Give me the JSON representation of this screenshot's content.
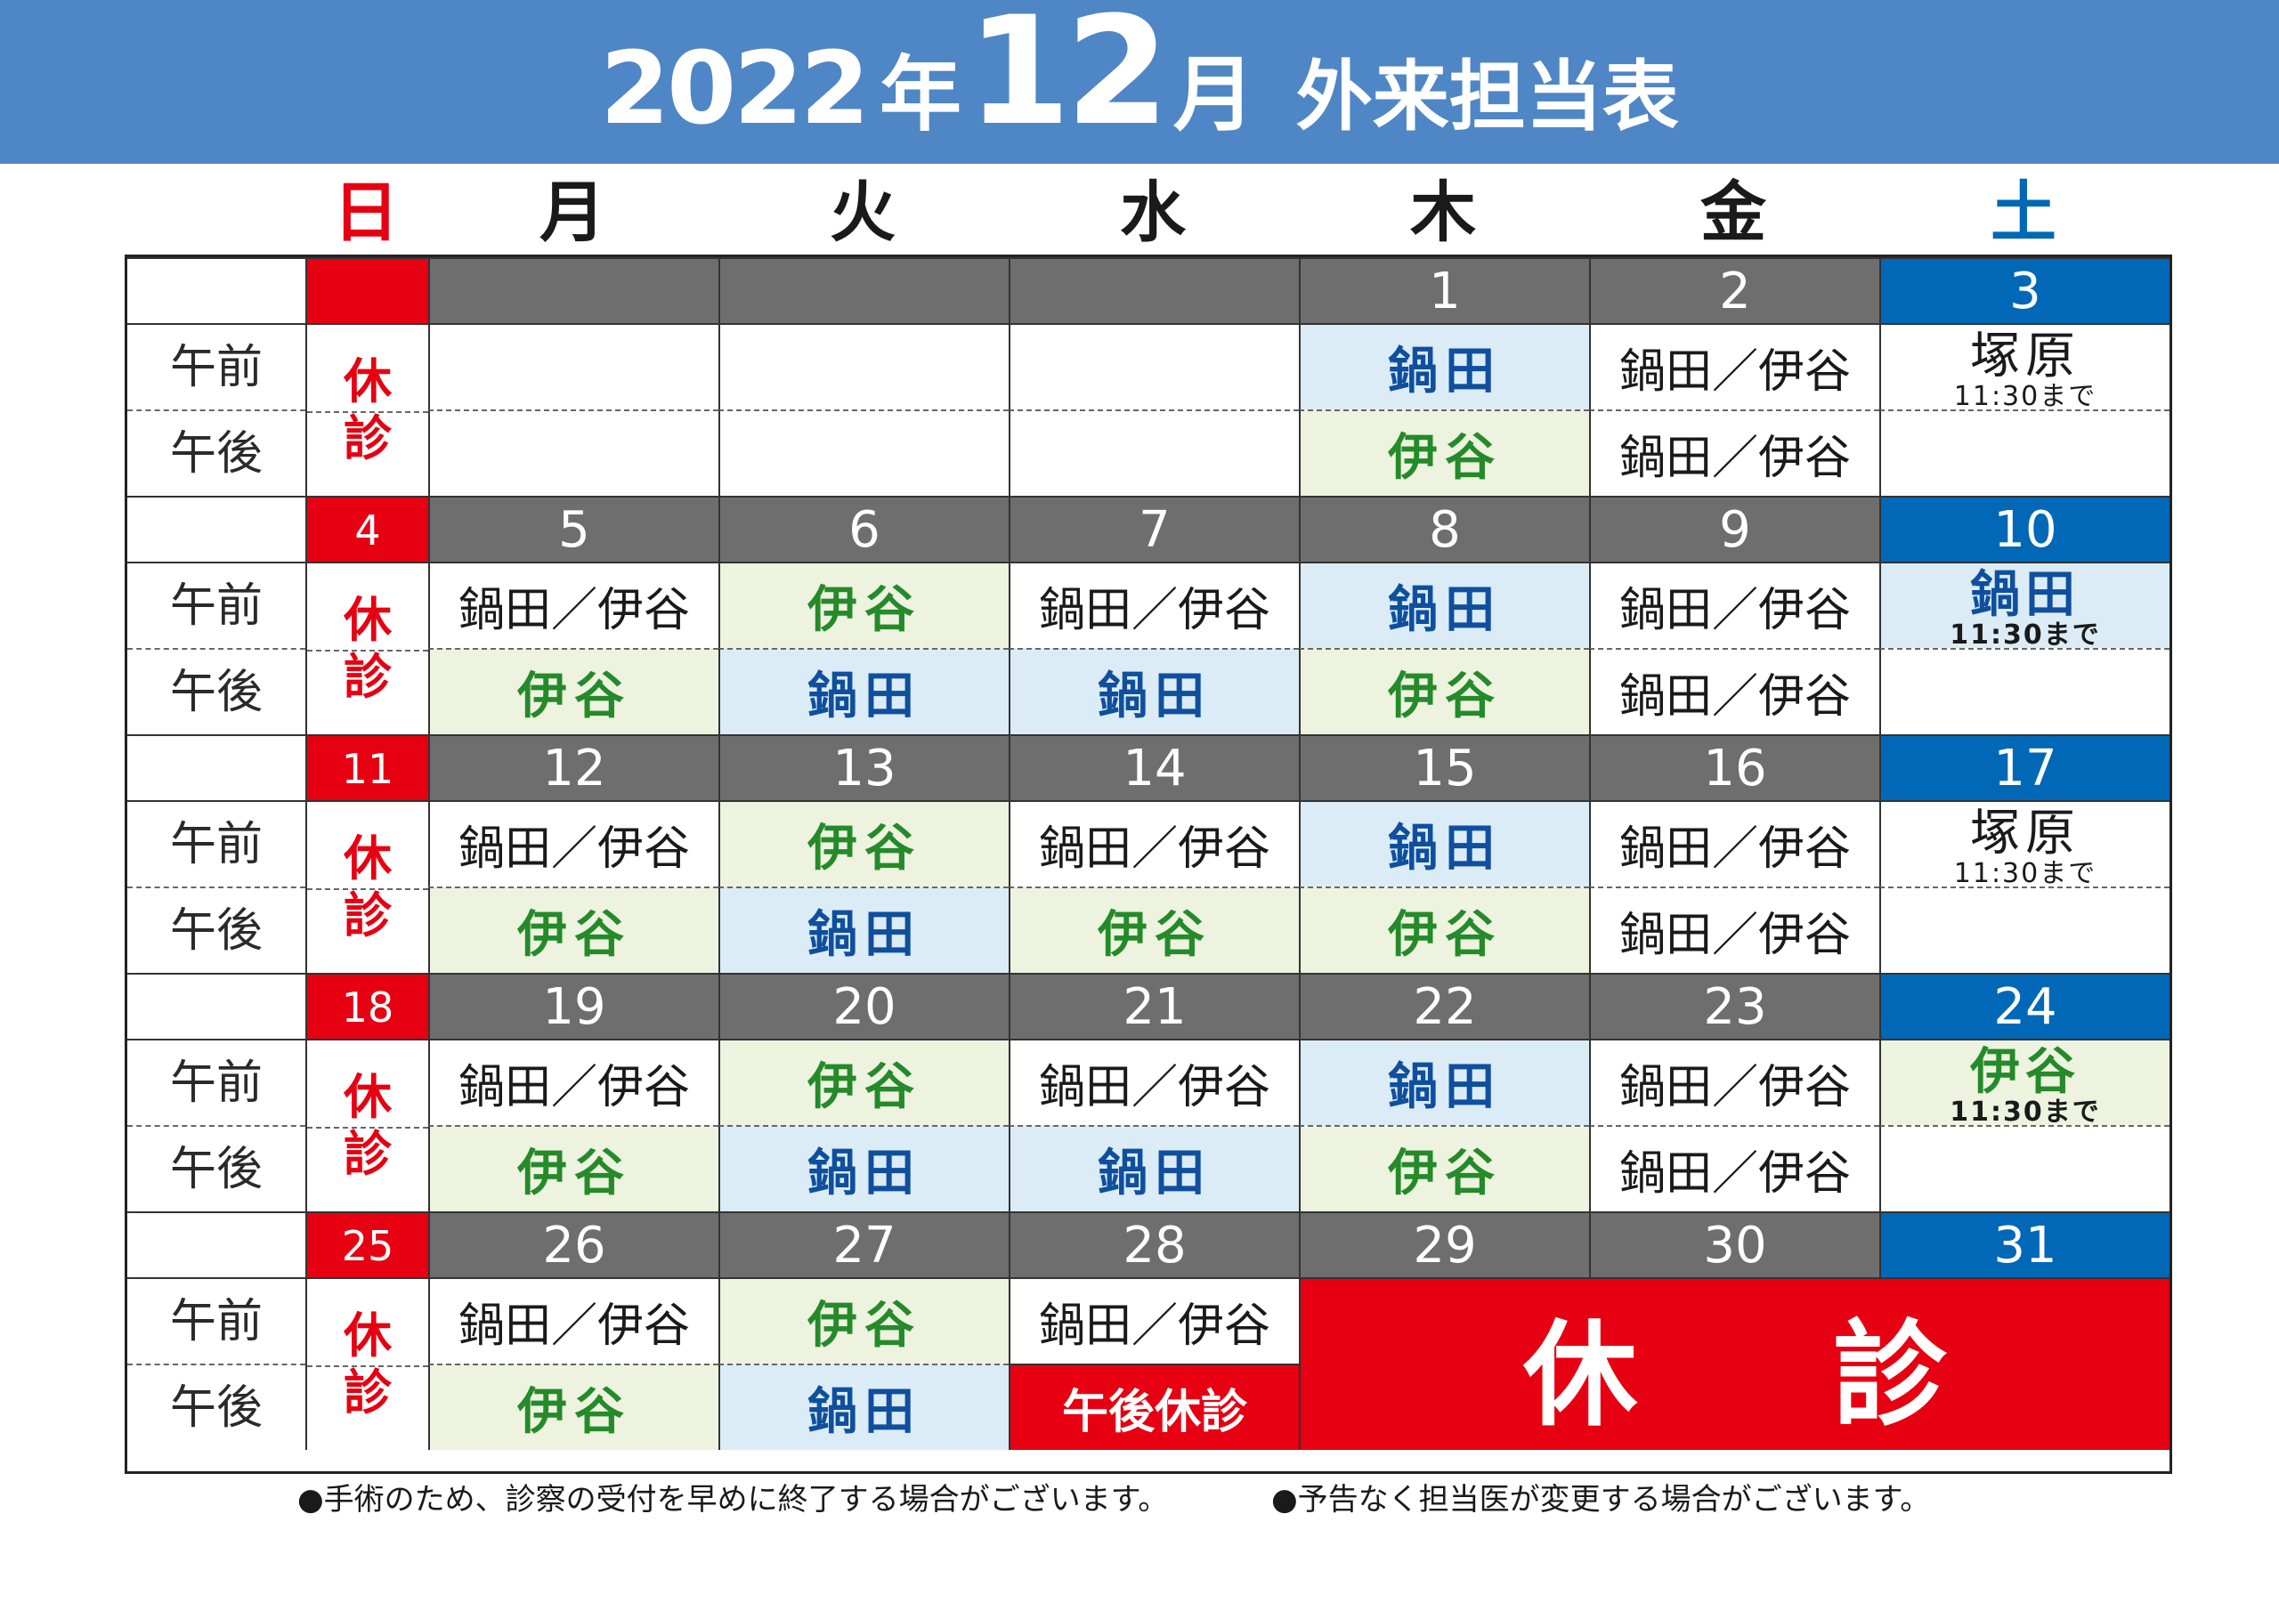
{
  "title": {
    "year": "2022",
    "nen": "年",
    "month": "12",
    "getsu": "月",
    "subtitle": "外来担当表"
  },
  "weekdays": [
    "日",
    "月",
    "火",
    "水",
    "木",
    "金",
    "土"
  ],
  "labels": {
    "am": "午前",
    "pm": "午後"
  },
  "sunday_closed": [
    "休",
    "診"
  ],
  "weeks": [
    {
      "dates": [
        "",
        "",
        "",
        "",
        "1",
        "2",
        "3"
      ],
      "am": [
        {
          "t": "",
          "s": "empty"
        },
        {
          "t": "",
          "s": "empty"
        },
        {
          "t": "",
          "s": "empty"
        },
        {
          "t": "鍋田",
          "s": "nabe"
        },
        {
          "t": "鍋田／伊谷",
          "s": "both"
        },
        {
          "t": "塚原",
          "s": "satam",
          "note": "11:30まで"
        }
      ],
      "pm": [
        {
          "t": "",
          "s": "empty"
        },
        {
          "t": "",
          "s": "empty"
        },
        {
          "t": "",
          "s": "empty"
        },
        {
          "t": "伊谷",
          "s": "itani"
        },
        {
          "t": "鍋田／伊谷",
          "s": "both"
        },
        {
          "t": "",
          "s": "empty"
        }
      ]
    },
    {
      "dates": [
        "4",
        "5",
        "6",
        "7",
        "8",
        "9",
        "10"
      ],
      "am": [
        {
          "t": "鍋田／伊谷",
          "s": "both"
        },
        {
          "t": "伊谷",
          "s": "itani"
        },
        {
          "t": "鍋田／伊谷",
          "s": "both"
        },
        {
          "t": "鍋田",
          "s": "nabe"
        },
        {
          "t": "鍋田／伊谷",
          "s": "both"
        },
        {
          "t": "鍋田",
          "s": "satam nabe-sat",
          "note": "11:30まで"
        }
      ],
      "pm": [
        {
          "t": "伊谷",
          "s": "itani"
        },
        {
          "t": "鍋田",
          "s": "nabe"
        },
        {
          "t": "鍋田",
          "s": "nabe"
        },
        {
          "t": "伊谷",
          "s": "itani"
        },
        {
          "t": "鍋田／伊谷",
          "s": "both"
        },
        {
          "t": "",
          "s": "empty"
        }
      ]
    },
    {
      "dates": [
        "11",
        "12",
        "13",
        "14",
        "15",
        "16",
        "17"
      ],
      "am": [
        {
          "t": "鍋田／伊谷",
          "s": "both"
        },
        {
          "t": "伊谷",
          "s": "itani"
        },
        {
          "t": "鍋田／伊谷",
          "s": "both"
        },
        {
          "t": "鍋田",
          "s": "nabe"
        },
        {
          "t": "鍋田／伊谷",
          "s": "both"
        },
        {
          "t": "塚原",
          "s": "satam",
          "note": "11:30まで"
        }
      ],
      "pm": [
        {
          "t": "伊谷",
          "s": "itani"
        },
        {
          "t": "鍋田",
          "s": "nabe"
        },
        {
          "t": "伊谷",
          "s": "itani"
        },
        {
          "t": "伊谷",
          "s": "itani"
        },
        {
          "t": "鍋田／伊谷",
          "s": "both"
        },
        {
          "t": "",
          "s": "empty"
        }
      ]
    },
    {
      "dates": [
        "18",
        "19",
        "20",
        "21",
        "22",
        "23",
        "24"
      ],
      "am": [
        {
          "t": "鍋田／伊谷",
          "s": "both"
        },
        {
          "t": "伊谷",
          "s": "itani"
        },
        {
          "t": "鍋田／伊谷",
          "s": "both"
        },
        {
          "t": "鍋田",
          "s": "nabe"
        },
        {
          "t": "鍋田／伊谷",
          "s": "both"
        },
        {
          "t": "伊谷",
          "s": "satam itani-sat",
          "note": "11:30まで"
        }
      ],
      "pm": [
        {
          "t": "伊谷",
          "s": "itani"
        },
        {
          "t": "鍋田",
          "s": "nabe"
        },
        {
          "t": "鍋田",
          "s": "nabe"
        },
        {
          "t": "伊谷",
          "s": "itani"
        },
        {
          "t": "鍋田／伊谷",
          "s": "both"
        },
        {
          "t": "",
          "s": "empty"
        }
      ]
    },
    {
      "dates": [
        "25",
        "26",
        "27",
        "28",
        "29",
        "30",
        "31"
      ],
      "am": [
        {
          "t": "鍋田／伊谷",
          "s": "both"
        },
        {
          "t": "伊谷",
          "s": "itani"
        },
        {
          "t": "鍋田／伊谷",
          "s": "both"
        }
      ],
      "pm": [
        {
          "t": "伊谷",
          "s": "itani"
        },
        {
          "t": "鍋田",
          "s": "nabe"
        },
        {
          "t": "午後休診",
          "s": "redpm"
        }
      ],
      "closed": [
        "休",
        "診"
      ]
    }
  ],
  "notes": [
    "●手術のため、診察の受付を早めに終了する場合がございます。",
    "●予告なく担当医が変更する場合がございます。"
  ],
  "colors": {
    "banner": "#4f86c5",
    "sunday": "#e60012",
    "saturday": "#0068b7",
    "date_header": "#6e6e6e",
    "nabe_bg": "#dbecf6",
    "itani_bg": "#edf3df"
  }
}
